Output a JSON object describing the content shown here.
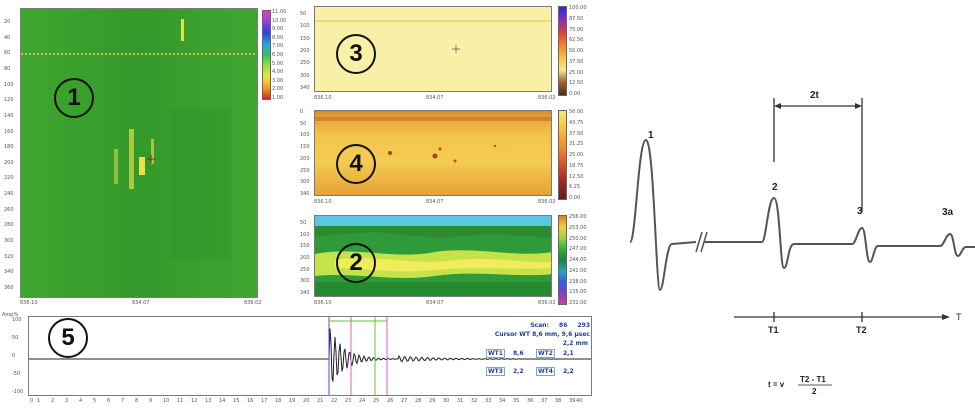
{
  "panels": {
    "p1": {
      "label": "1",
      "yticks": [
        "20",
        "40",
        "60",
        "80",
        "100",
        "120",
        "140",
        "160",
        "180",
        "200",
        "220",
        "240",
        "260",
        "280",
        "300",
        "320",
        "340",
        "360"
      ],
      "xticks": [
        "836.10",
        "834.07",
        "836.02"
      ],
      "colorbar": [
        "11.00",
        "10.00",
        "9.00",
        "8.00",
        "7.00",
        "6.00",
        "5.00",
        "4.00",
        "3.00",
        "2.00",
        "1.00"
      ]
    },
    "p3": {
      "label": "3",
      "yticks": [
        "50",
        "100",
        "150",
        "200",
        "250",
        "300",
        "340"
      ],
      "xticks": [
        "836.10",
        "834.07",
        "836.02"
      ],
      "colorbar": [
        "100.00",
        "87.50",
        "75.00",
        "62.50",
        "50.00",
        "37.50",
        "25.00",
        "12.50",
        "0.00"
      ]
    },
    "p4": {
      "label": "4",
      "yticks": [
        "0",
        "50",
        "100",
        "150",
        "200",
        "250",
        "300",
        "340"
      ],
      "xticks": [
        "836.10",
        "834.07",
        "836.02"
      ],
      "colorbar": [
        "50.00",
        "43.75",
        "37.50",
        "31.25",
        "25.00",
        "18.75",
        "12.50",
        "6.25",
        "0.00"
      ]
    },
    "p2": {
      "label": "2",
      "yticks": [
        "50",
        "100",
        "150",
        "200",
        "250",
        "300",
        "340"
      ],
      "xticks": [
        "836.10",
        "834.07",
        "836.02"
      ],
      "colorbar": [
        "256.00",
        "253.00",
        "250.00",
        "247.00",
        "244.00",
        "241.00",
        "238.00",
        "235.00",
        "232.00"
      ]
    },
    "p5": {
      "label": "5",
      "yaxis_title": "Amp%",
      "yticks": [
        "100",
        "50",
        "0",
        "-50",
        "-100"
      ],
      "xticks": [
        "0",
        "1",
        "2",
        "3",
        "4",
        "5",
        "6",
        "7",
        "8",
        "9",
        "10",
        "11",
        "12",
        "13",
        "14",
        "15",
        "16",
        "17",
        "18",
        "19",
        "20",
        "21",
        "22",
        "23",
        "24",
        "25",
        "26",
        "27",
        "28",
        "29",
        "30",
        "31",
        "32",
        "33",
        "34",
        "35",
        "36",
        "37",
        "38",
        "39",
        "40"
      ],
      "info": {
        "scan_label": "Scan:",
        "scan_value": "86",
        "scan_value2": "293",
        "cursor_line": "Cursor WT  8,6 mm, 9,6 µsec",
        "cursor_line2": "2,2 mm",
        "wt1_label": "WT1",
        "wt1_value": "8,6",
        "wt2_label": "WT2",
        "wt2_value": "2,1",
        "wt3_label": "WT3",
        "wt3_value": "2,2",
        "wt4_label": "WT4",
        "wt4_value": "2,2"
      }
    }
  },
  "diagram": {
    "peak_labels": [
      "1",
      "2",
      "3",
      "3a"
    ],
    "interval_label": "2t",
    "axis_label": "T",
    "t1_label": "T1",
    "t2_label": "T2",
    "formula_lhs": "t = v",
    "formula_num": "T2 - T1",
    "formula_den": "2"
  },
  "colors": {
    "green": "#3aa02c",
    "yellow": "#f5ef9a",
    "orange": "#e9a83a",
    "cyan": "#4fc2e0",
    "frame": "#7a7a7a"
  }
}
